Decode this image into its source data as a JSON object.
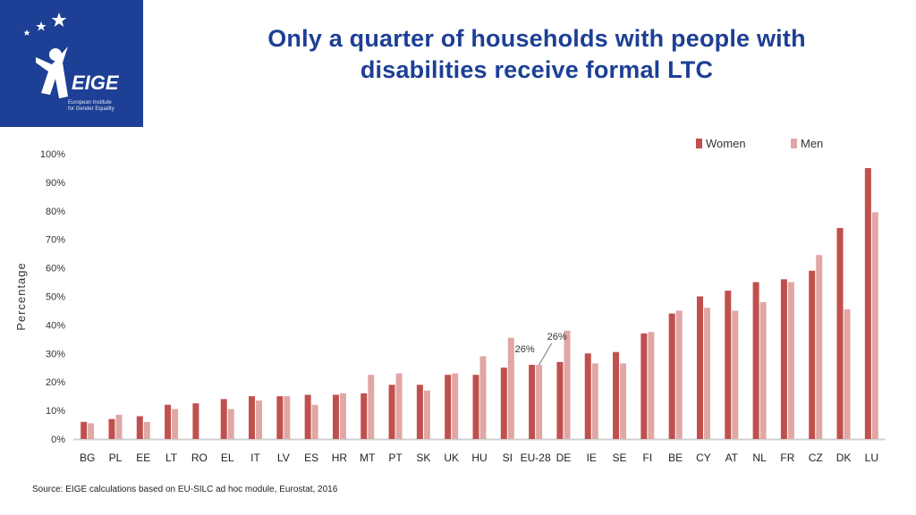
{
  "logo": {
    "wordmark": "EIGE",
    "org_line1": "European Institute",
    "org_line2": "for Gender Equality",
    "color": "#1d3f95"
  },
  "title": {
    "line1": "Only a quarter of households with people with",
    "line2": "disabilities receive formal LTC"
  },
  "source": "Source: EIGE calculations based on EU-SILC ad hoc module, Eurostat, 2016",
  "chart_data": {
    "type": "bar",
    "ylabel": "Percentage",
    "xlabel": "",
    "ylim": [
      0,
      100
    ],
    "yticks": [
      "0%",
      "10%",
      "20%",
      "30%",
      "40%",
      "50%",
      "60%",
      "70%",
      "80%",
      "90%",
      "100%"
    ],
    "categories": [
      "BG",
      "PL",
      "EE",
      "LT",
      "RO",
      "EL",
      "IT",
      "LV",
      "ES",
      "HR",
      "MT",
      "PT",
      "SK",
      "UK",
      "HU",
      "SI",
      "EU-28",
      "DE",
      "IE",
      "SE",
      "FI",
      "BE",
      "CY",
      "AT",
      "NL",
      "FR",
      "CZ",
      "DK",
      "LU"
    ],
    "series": [
      {
        "name": "Women",
        "color": "#c0504d",
        "values": [
          6,
          7,
          8,
          12,
          12.5,
          14,
          15,
          15,
          15.5,
          15.5,
          16,
          19,
          19,
          22.5,
          22.5,
          25,
          26,
          27,
          30,
          30.5,
          37,
          44,
          50,
          52,
          55,
          56,
          59,
          74,
          95
        ]
      },
      {
        "name": "Men",
        "color": "#e0a7a6",
        "values": [
          5.5,
          8.5,
          6,
          10.5,
          null,
          10.5,
          13.5,
          15,
          12,
          16,
          22.5,
          23,
          17,
          23,
          29,
          35.5,
          26,
          38,
          26.5,
          26.5,
          37.5,
          45,
          46,
          45,
          48,
          55,
          64.5,
          45.5,
          79.5
        ]
      }
    ],
    "annotations": [
      {
        "text": "26%",
        "category": "EU-28",
        "series": "Women"
      },
      {
        "text": "26%",
        "category": "EU-28",
        "series": "Men"
      }
    ],
    "legend_position": "top-right",
    "grid": false
  }
}
